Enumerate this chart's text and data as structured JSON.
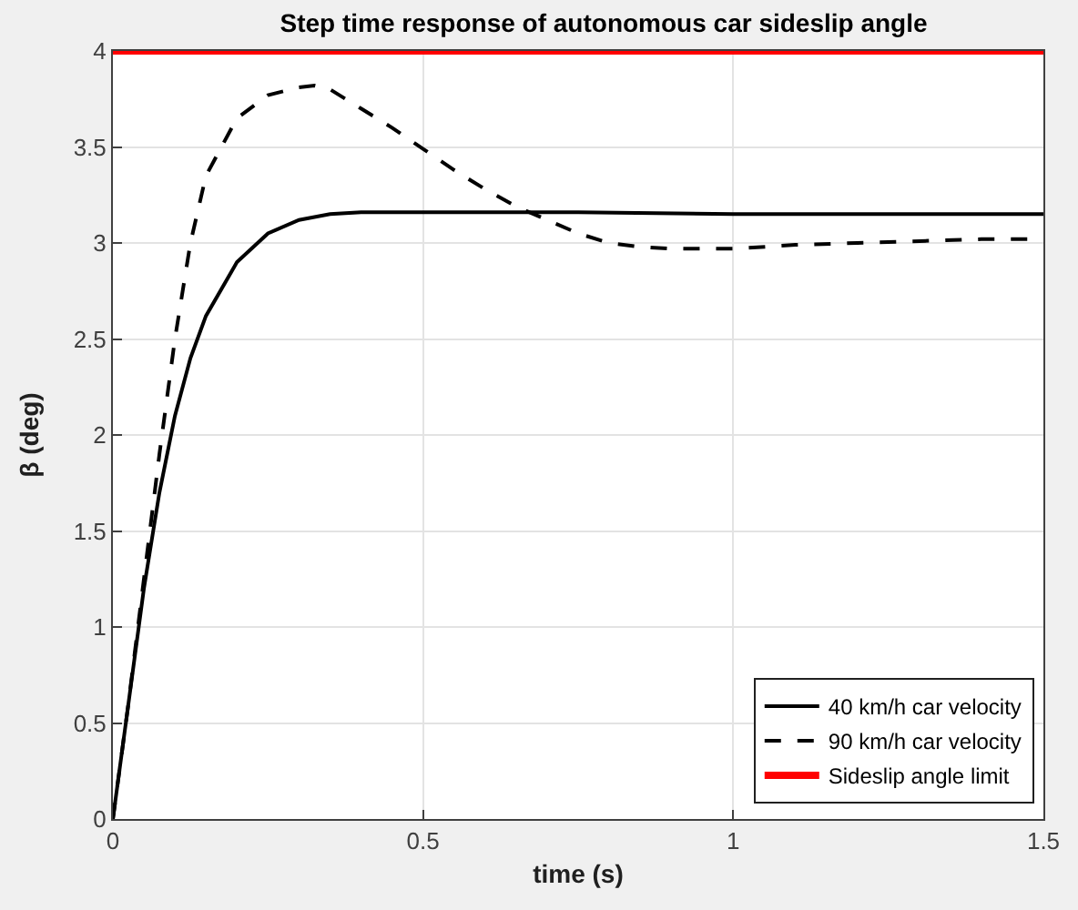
{
  "chart_data": {
    "type": "line",
    "title": "Step time response of autonomous car sideslip angle",
    "xlabel": "time (s)",
    "ylabel": "β (deg)",
    "xlim": [
      0,
      1.5
    ],
    "xticks": [
      0,
      0.5,
      1,
      1.5
    ],
    "ylim": [
      0,
      4
    ],
    "yticks": [
      0,
      0.5,
      1,
      1.5,
      2,
      2.5,
      3,
      3.5,
      4
    ],
    "grid": true,
    "legend": "bottom right",
    "marker": "none",
    "series": [
      {
        "name": "40 km/h car velocity",
        "color": "#000000",
        "line_style": "solid",
        "x": [
          0,
          0.025,
          0.05,
          0.075,
          0.1,
          0.125,
          0.15,
          0.2,
          0.25,
          0.3,
          0.35,
          0.4,
          0.5,
          0.75,
          1.0,
          1.5
        ],
        "values": [
          0,
          0.6,
          1.2,
          1.7,
          2.1,
          2.4,
          2.62,
          2.9,
          3.05,
          3.12,
          3.15,
          3.16,
          3.16,
          3.16,
          3.15,
          3.15
        ]
      },
      {
        "name": "90 km/h car velocity",
        "color": "#000000",
        "line_style": "dashed",
        "x": [
          0,
          0.025,
          0.05,
          0.075,
          0.1,
          0.125,
          0.15,
          0.2,
          0.25,
          0.3,
          0.325,
          0.35,
          0.4,
          0.45,
          0.5,
          0.55,
          0.6,
          0.65,
          0.7,
          0.75,
          0.8,
          0.85,
          0.9,
          1.0,
          1.1,
          1.2,
          1.3,
          1.4,
          1.5
        ],
        "values": [
          0,
          0.6,
          1.25,
          1.9,
          2.5,
          3.0,
          3.35,
          3.65,
          3.77,
          3.81,
          3.82,
          3.8,
          3.7,
          3.6,
          3.49,
          3.38,
          3.28,
          3.19,
          3.12,
          3.05,
          3.0,
          2.98,
          2.97,
          2.97,
          2.99,
          3.0,
          3.01,
          3.02,
          3.02
        ]
      }
    ],
    "ref_lines": [
      {
        "axis": "y",
        "value": 4,
        "label": "Sideslip angle limit",
        "color": "#ff0000",
        "line_style": "solid"
      }
    ]
  }
}
